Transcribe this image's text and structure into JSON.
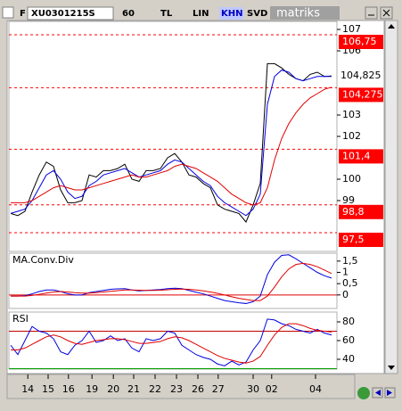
{
  "toolbar": {
    "mode": "F",
    "symbol": "XU0301215S",
    "period": "60",
    "currency": "TL",
    "scale": "LIN",
    "chart_type": "KHN",
    "view": "SVD",
    "logo": "matriks"
  },
  "x_axis": {
    "x": [
      0,
      1,
      2,
      3,
      4,
      5,
      6,
      7,
      8,
      9,
      10,
      11,
      12,
      13,
      14,
      15,
      16,
      17,
      18,
      19,
      20,
      21,
      22,
      23,
      24,
      25,
      26,
      27,
      28,
      29,
      30,
      31,
      32,
      33,
      34,
      35,
      36,
      37,
      38,
      39,
      40,
      41,
      42,
      43,
      44,
      45
    ],
    "xlim": [
      0,
      45
    ],
    "xticks": [
      {
        "value": 2.4,
        "label": "14"
      },
      {
        "value": 5.25,
        "label": "15"
      },
      {
        "value": 8.1,
        "label": "16"
      },
      {
        "value": 11.4,
        "label": "19"
      },
      {
        "value": 14.4,
        "label": "20"
      },
      {
        "value": 17.25,
        "label": "21"
      },
      {
        "value": 20.25,
        "label": "22"
      },
      {
        "value": 23.25,
        "label": "23"
      },
      {
        "value": 26.25,
        "label": "26"
      },
      {
        "value": 29.1,
        "label": "27"
      },
      {
        "value": 34,
        "label": "30"
      },
      {
        "value": 36.6,
        "label": "02"
      },
      {
        "value": 42.75,
        "label": "04"
      }
    ]
  },
  "chart_data": [
    {
      "type": "line",
      "ylim": [
        96.625,
        107.375
      ],
      "yticks": [
        107,
        106,
        103,
        102,
        100,
        99
      ],
      "series": [
        {
          "color": "#000000",
          "values": [
            98.4,
            98.3,
            98.5,
            99.4,
            100.2,
            100.8,
            100.6,
            99.5,
            98.9,
            98.9,
            99.0,
            100.2,
            100.1,
            100.4,
            100.4,
            100.5,
            100.7,
            100.0,
            99.9,
            100.4,
            100.4,
            100.5,
            101.0,
            101.2,
            100.8,
            100.2,
            100.1,
            99.8,
            99.6,
            98.8,
            98.6,
            98.5,
            98.4,
            98.0,
            98.8,
            99.8,
            105.4,
            105.4,
            105.2,
            104.9,
            104.7,
            104.6,
            104.9,
            105.0,
            104.8,
            104.825
          ]
        },
        {
          "color": "#0000e0",
          "values": [
            98.4,
            98.5,
            98.6,
            99.0,
            99.6,
            100.2,
            100.4,
            100.0,
            99.4,
            99.1,
            99.2,
            99.7,
            99.9,
            100.2,
            100.3,
            100.4,
            100.5,
            100.3,
            100.1,
            100.2,
            100.3,
            100.4,
            100.7,
            100.9,
            100.8,
            100.5,
            100.2,
            99.9,
            99.7,
            99.2,
            98.9,
            98.7,
            98.5,
            98.3,
            98.6,
            99.3,
            103.5,
            104.8,
            105.1,
            105.0,
            104.7,
            104.6,
            104.7,
            104.8,
            104.8,
            104.8
          ]
        },
        {
          "color": "#e00000",
          "values": [
            98.9,
            98.9,
            98.9,
            99.0,
            99.2,
            99.4,
            99.6,
            99.7,
            99.6,
            99.5,
            99.5,
            99.6,
            99.7,
            99.8,
            99.9,
            100.0,
            100.1,
            100.2,
            100.1,
            100.1,
            100.2,
            100.3,
            100.4,
            100.6,
            100.7,
            100.6,
            100.5,
            100.3,
            100.1,
            99.9,
            99.6,
            99.3,
            99.1,
            98.9,
            98.8,
            98.9,
            99.6,
            100.9,
            101.9,
            102.6,
            103.1,
            103.5,
            103.8,
            104.0,
            104.2,
            104.3
          ]
        }
      ],
      "levels": [
        {
          "value": 106.75,
          "label": "106,75"
        },
        {
          "value": 104.275,
          "label": "104,275"
        },
        {
          "value": 101.4,
          "label": "101,4"
        },
        {
          "value": 98.8,
          "label": "98,8"
        },
        {
          "value": 97.5,
          "label": "97,5"
        }
      ],
      "level_color": "#ff0000",
      "last": {
        "value": 104.825,
        "label": "104,825"
      }
    },
    {
      "type": "line",
      "title": "MA.Conv.Div",
      "ylim": [
        -0.6,
        1.85
      ],
      "yticks": [
        {
          "value": 1.5,
          "label": "1,5"
        },
        1,
        {
          "value": 0.5,
          "label": "0,5"
        },
        0
      ],
      "hlines": [
        {
          "value": 0,
          "color": "#e00000"
        }
      ],
      "series": [
        {
          "color": "#0000e0",
          "values": [
            -0.05,
            -0.05,
            -0.03,
            0.05,
            0.15,
            0.22,
            0.22,
            0.15,
            0.05,
            0.0,
            0.0,
            0.1,
            0.15,
            0.2,
            0.25,
            0.27,
            0.28,
            0.22,
            0.18,
            0.2,
            0.22,
            0.24,
            0.28,
            0.3,
            0.28,
            0.2,
            0.12,
            0.05,
            -0.05,
            -0.15,
            -0.25,
            -0.3,
            -0.35,
            -0.38,
            -0.3,
            -0.05,
            0.9,
            1.45,
            1.75,
            1.78,
            1.6,
            1.4,
            1.2,
            1.0,
            0.85,
            0.75
          ]
        },
        {
          "color": "#e00000",
          "values": [
            -0.05,
            -0.05,
            -0.05,
            -0.02,
            0.03,
            0.08,
            0.13,
            0.15,
            0.13,
            0.1,
            0.08,
            0.08,
            0.1,
            0.13,
            0.16,
            0.19,
            0.22,
            0.22,
            0.21,
            0.2,
            0.2,
            0.21,
            0.23,
            0.25,
            0.26,
            0.25,
            0.22,
            0.18,
            0.13,
            0.07,
            0.0,
            -0.08,
            -0.15,
            -0.2,
            -0.25,
            -0.25,
            -0.05,
            0.35,
            0.8,
            1.15,
            1.35,
            1.4,
            1.35,
            1.25,
            1.1,
            0.95
          ]
        }
      ]
    },
    {
      "type": "line",
      "title": "RSI",
      "ylim": [
        29.5,
        90.5
      ],
      "yticks": [
        80,
        60,
        40
      ],
      "hlines": [
        {
          "value": 70,
          "color": "#c00000"
        },
        {
          "value": 30,
          "color": "#00a000"
        }
      ],
      "series": [
        {
          "color": "#0000e0",
          "values": [
            55,
            45,
            60,
            75,
            70,
            68,
            62,
            48,
            45,
            55,
            60,
            70,
            58,
            60,
            65,
            60,
            62,
            52,
            48,
            62,
            60,
            62,
            70,
            68,
            55,
            50,
            45,
            42,
            40,
            35,
            33,
            38,
            34,
            37,
            50,
            60,
            83,
            82,
            78,
            76,
            72,
            70,
            68,
            72,
            68,
            66
          ]
        },
        {
          "color": "#e00000",
          "values": [
            50,
            50,
            52,
            56,
            60,
            64,
            66,
            64,
            60,
            57,
            56,
            58,
            60,
            61,
            62,
            62,
            61,
            59,
            57,
            57,
            58,
            59,
            62,
            64,
            63,
            60,
            56,
            52,
            48,
            44,
            41,
            39,
            37,
            36,
            38,
            43,
            55,
            66,
            74,
            78,
            78,
            76,
            73,
            71,
            70,
            69
          ]
        }
      ]
    }
  ]
}
